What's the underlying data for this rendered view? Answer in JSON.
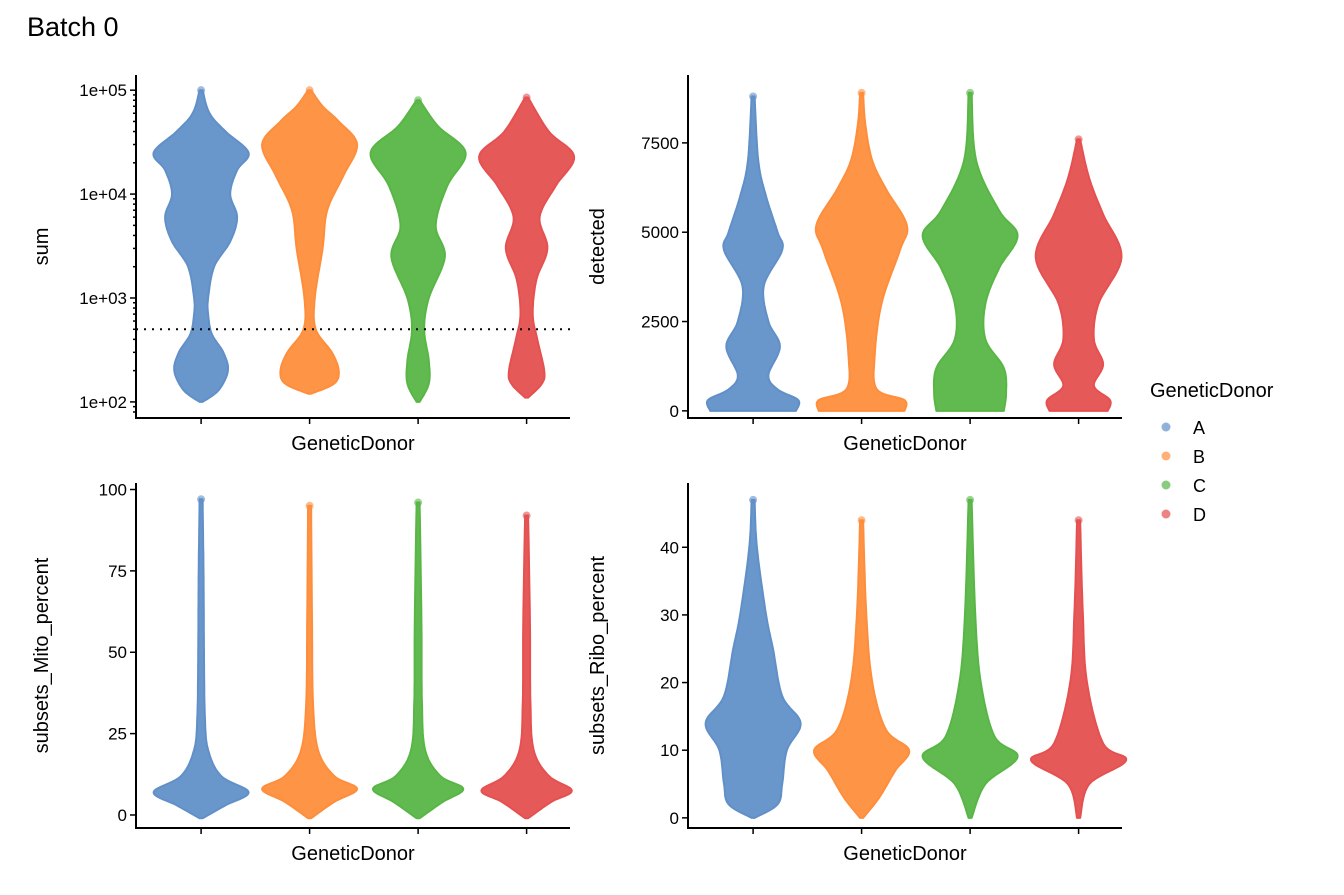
{
  "title": "Batch 0",
  "legend": {
    "title": "GeneticDonor",
    "placement": "right",
    "items": [
      {
        "label": "A",
        "color": "#6190c8"
      },
      {
        "label": "B",
        "color": "#fe8e3c"
      },
      {
        "label": "C",
        "color": "#59b646"
      },
      {
        "label": "D",
        "color": "#e55050"
      }
    ]
  },
  "chart_data": [
    {
      "type": "violin",
      "xlabel": "GeneticDonor",
      "ylabel": "sum",
      "scale": "log10",
      "ylim": [
        70,
        140000
      ],
      "yticks": [
        100,
        1000,
        10000,
        100000
      ],
      "ytick_labels": [
        "1e+02",
        "1e+03",
        "1e+04",
        "1e+05"
      ],
      "hline": {
        "value": 500,
        "style": "dotted"
      },
      "categories": [
        "A",
        "B",
        "C",
        "D"
      ],
      "profiles": [
        [
          [
            100,
            0
          ],
          [
            130,
            0.35
          ],
          [
            200,
            0.55
          ],
          [
            300,
            0.45
          ],
          [
            450,
            0.2
          ],
          [
            700,
            0.12
          ],
          [
            1000,
            0.12
          ],
          [
            2000,
            0.25
          ],
          [
            3500,
            0.6
          ],
          [
            6000,
            0.75
          ],
          [
            10000,
            0.6
          ],
          [
            17000,
            0.75
          ],
          [
            25000,
            1.0
          ],
          [
            40000,
            0.5
          ],
          [
            60000,
            0.15
          ],
          [
            100000,
            0
          ]
        ],
        [
          [
            120,
            0
          ],
          [
            150,
            0.5
          ],
          [
            200,
            0.6
          ],
          [
            300,
            0.45
          ],
          [
            500,
            0.1
          ],
          [
            1000,
            0.08
          ],
          [
            3000,
            0.25
          ],
          [
            7000,
            0.35
          ],
          [
            15000,
            0.7
          ],
          [
            30000,
            1.0
          ],
          [
            50000,
            0.6
          ],
          [
            70000,
            0.25
          ],
          [
            100000,
            0
          ]
        ],
        [
          [
            100,
            0
          ],
          [
            150,
            0.2
          ],
          [
            250,
            0.2
          ],
          [
            500,
            0.1
          ],
          [
            1000,
            0.2
          ],
          [
            2500,
            0.55
          ],
          [
            5000,
            0.35
          ],
          [
            12000,
            0.6
          ],
          [
            25000,
            1.0
          ],
          [
            45000,
            0.4
          ],
          [
            80000,
            0
          ]
        ],
        [
          [
            110,
            0
          ],
          [
            150,
            0.3
          ],
          [
            200,
            0.35
          ],
          [
            400,
            0.2
          ],
          [
            700,
            0.1
          ],
          [
            1500,
            0.18
          ],
          [
            3000,
            0.42
          ],
          [
            6000,
            0.25
          ],
          [
            12000,
            0.6
          ],
          [
            23000,
            1.0
          ],
          [
            40000,
            0.45
          ],
          [
            85000,
            0
          ]
        ]
      ]
    },
    {
      "type": "violin",
      "xlabel": "GeneticDonor",
      "ylabel": "detected",
      "scale": "linear",
      "ylim": [
        -200,
        9400
      ],
      "yticks": [
        0,
        2500,
        5000,
        7500
      ],
      "ytick_labels": [
        "0",
        "2500",
        "5000",
        "7500"
      ],
      "categories": [
        "A",
        "B",
        "C",
        "D"
      ],
      "profiles": [
        [
          [
            0,
            0.9
          ],
          [
            300,
            0.95
          ],
          [
            600,
            0.5
          ],
          [
            1000,
            0.3
          ],
          [
            1800,
            0.55
          ],
          [
            2500,
            0.3
          ],
          [
            3500,
            0.2
          ],
          [
            4500,
            0.6
          ],
          [
            5000,
            0.5
          ],
          [
            6000,
            0.25
          ],
          [
            7000,
            0.08
          ],
          [
            8800,
            0
          ]
        ],
        [
          [
            0,
            0.9
          ],
          [
            300,
            0.9
          ],
          [
            600,
            0.3
          ],
          [
            1500,
            0.25
          ],
          [
            3000,
            0.4
          ],
          [
            4500,
            0.8
          ],
          [
            5200,
            0.95
          ],
          [
            6200,
            0.5
          ],
          [
            7000,
            0.2
          ],
          [
            8000,
            0.05
          ],
          [
            8900,
            0
          ]
        ],
        [
          [
            0,
            0.7
          ],
          [
            500,
            0.75
          ],
          [
            1200,
            0.7
          ],
          [
            2000,
            0.3
          ],
          [
            3000,
            0.3
          ],
          [
            4000,
            0.6
          ],
          [
            4900,
            1.0
          ],
          [
            5600,
            0.6
          ],
          [
            7000,
            0.1
          ],
          [
            8900,
            0
          ]
        ],
        [
          [
            0,
            0.6
          ],
          [
            300,
            0.65
          ],
          [
            700,
            0.3
          ],
          [
            1300,
            0.5
          ],
          [
            2000,
            0.3
          ],
          [
            3000,
            0.4
          ],
          [
            4300,
            0.9
          ],
          [
            5500,
            0.5
          ],
          [
            6500,
            0.2
          ],
          [
            7600,
            0
          ]
        ]
      ]
    },
    {
      "type": "violin",
      "xlabel": "GeneticDonor",
      "ylabel": "subsets_Mito_percent",
      "scale": "linear",
      "ylim": [
        -4,
        102
      ],
      "yticks": [
        0,
        25,
        50,
        75,
        100
      ],
      "ytick_labels": [
        "0",
        "25",
        "50",
        "75",
        "100"
      ],
      "categories": [
        "A",
        "B",
        "C",
        "D"
      ],
      "profiles": [
        [
          [
            -1,
            0
          ],
          [
            3,
            0.5
          ],
          [
            7,
            1.0
          ],
          [
            12,
            0.4
          ],
          [
            20,
            0.12
          ],
          [
            30,
            0.05
          ],
          [
            50,
            0.03
          ],
          [
            75,
            0.02
          ],
          [
            97,
            0
          ]
        ],
        [
          [
            -1,
            0
          ],
          [
            4,
            0.5
          ],
          [
            8,
            1.0
          ],
          [
            12,
            0.5
          ],
          [
            20,
            0.15
          ],
          [
            35,
            0.04
          ],
          [
            60,
            0.02
          ],
          [
            95,
            0
          ]
        ],
        [
          [
            -1,
            0
          ],
          [
            4,
            0.5
          ],
          [
            8,
            0.95
          ],
          [
            12,
            0.45
          ],
          [
            20,
            0.12
          ],
          [
            35,
            0.05
          ],
          [
            60,
            0.04
          ],
          [
            96,
            0
          ]
        ],
        [
          [
            -1,
            0
          ],
          [
            4,
            0.5
          ],
          [
            7.5,
            0.95
          ],
          [
            12,
            0.45
          ],
          [
            20,
            0.12
          ],
          [
            35,
            0.05
          ],
          [
            60,
            0.04
          ],
          [
            92,
            0
          ]
        ]
      ]
    },
    {
      "type": "violin",
      "xlabel": "GeneticDonor",
      "ylabel": "subsets_Ribo_percent",
      "scale": "linear",
      "ylim": [
        -1.5,
        49.5
      ],
      "yticks": [
        0,
        10,
        20,
        30,
        40
      ],
      "ytick_labels": [
        "0",
        "10",
        "20",
        "30",
        "40"
      ],
      "categories": [
        "A",
        "B",
        "C",
        "D"
      ],
      "profiles": [
        [
          [
            0,
            0
          ],
          [
            2,
            0.5
          ],
          [
            5,
            0.6
          ],
          [
            10,
            0.7
          ],
          [
            14,
            1.0
          ],
          [
            18,
            0.6
          ],
          [
            25,
            0.4
          ],
          [
            30,
            0.25
          ],
          [
            40,
            0.05
          ],
          [
            47,
            0
          ]
        ],
        [
          [
            0,
            0
          ],
          [
            3,
            0.35
          ],
          [
            7,
            0.7
          ],
          [
            10,
            1.0
          ],
          [
            13,
            0.5
          ],
          [
            20,
            0.2
          ],
          [
            30,
            0.07
          ],
          [
            44,
            0
          ]
        ],
        [
          [
            0,
            0
          ],
          [
            5,
            0.3
          ],
          [
            9,
            1.0
          ],
          [
            12,
            0.5
          ],
          [
            20,
            0.2
          ],
          [
            30,
            0.08
          ],
          [
            47,
            0
          ]
        ],
        [
          [
            0,
            0
          ],
          [
            5,
            0.2
          ],
          [
            8.5,
            1.0
          ],
          [
            11,
            0.5
          ],
          [
            20,
            0.15
          ],
          [
            30,
            0.06
          ],
          [
            44,
            0
          ]
        ]
      ]
    }
  ]
}
